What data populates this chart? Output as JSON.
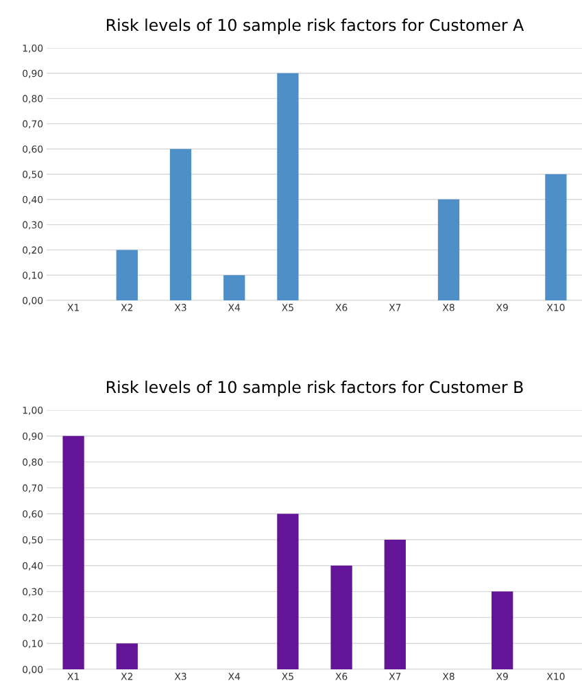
{
  "chart_data": [
    {
      "type": "bar",
      "title": "Risk levels of 10 sample risk factors for Customer A",
      "categories": [
        "X1",
        "X2",
        "X3",
        "X4",
        "X5",
        "X6",
        "X7",
        "X8",
        "X9",
        "X10"
      ],
      "values": [
        0,
        0.2,
        0.6,
        0.1,
        0.9,
        0,
        0,
        0.4,
        0,
        0.5
      ],
      "color": "#4f8fc8",
      "ylim": [
        0,
        1
      ],
      "yticks": [
        {
          "value": 0,
          "label": "0,00"
        },
        {
          "value": 0.1,
          "label": "0,10"
        },
        {
          "value": 0.2,
          "label": "0,20"
        },
        {
          "value": 0.3,
          "label": "0,30"
        },
        {
          "value": 0.4,
          "label": "0,40"
        },
        {
          "value": 0.5,
          "label": "0,50"
        },
        {
          "value": 0.6,
          "label": "0,60"
        },
        {
          "value": 0.7,
          "label": "0,70"
        },
        {
          "value": 0.8,
          "label": "0,80"
        },
        {
          "value": 0.9,
          "label": "0,90"
        },
        {
          "value": 1,
          "label": "1,00"
        }
      ],
      "grid": "y"
    },
    {
      "type": "bar",
      "title": "Risk levels of 10 sample risk factors for Customer B",
      "categories": [
        "X1",
        "X2",
        "X3",
        "X4",
        "X5",
        "X6",
        "X7",
        "X8",
        "X9",
        "X10"
      ],
      "values": [
        0.9,
        0.1,
        0,
        0,
        0.6,
        0.4,
        0.5,
        0,
        0.3,
        0
      ],
      "color": "#631598",
      "ylim": [
        0,
        1
      ],
      "yticks": [
        {
          "value": 0,
          "label": "0,00"
        },
        {
          "value": 0.1,
          "label": "0,10"
        },
        {
          "value": 0.2,
          "label": "0,20"
        },
        {
          "value": 0.3,
          "label": "0,30"
        },
        {
          "value": 0.4,
          "label": "0,40"
        },
        {
          "value": 0.5,
          "label": "0,50"
        },
        {
          "value": 0.6,
          "label": "0,60"
        },
        {
          "value": 0.7,
          "label": "0,70"
        },
        {
          "value": 0.8,
          "label": "0,80"
        },
        {
          "value": 0.9,
          "label": "0,90"
        },
        {
          "value": 1,
          "label": "1,00"
        }
      ],
      "grid": "y"
    }
  ]
}
